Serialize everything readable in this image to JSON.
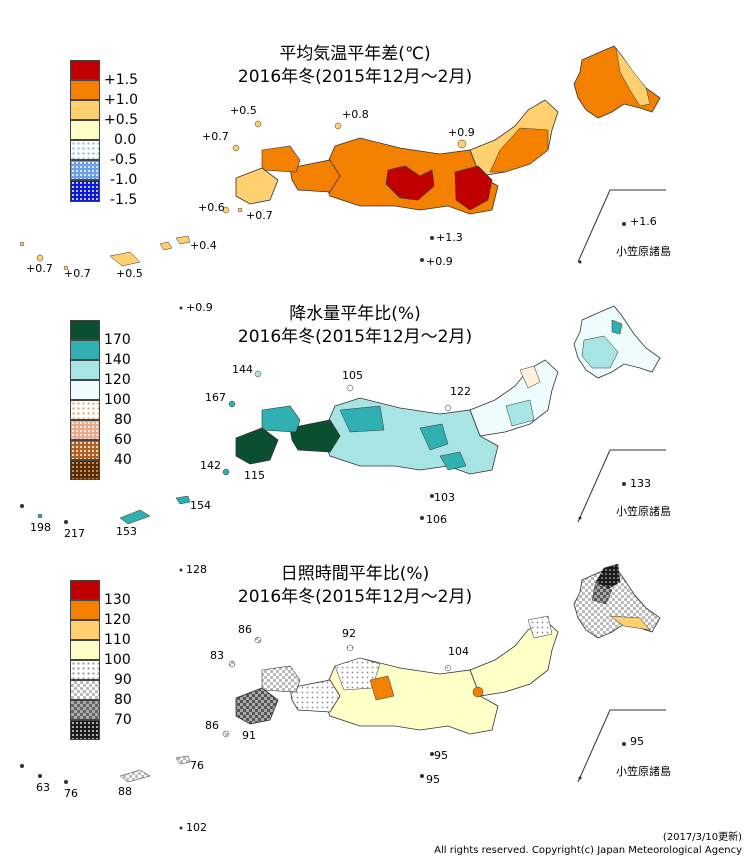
{
  "panels": [
    {
      "id": "temperature",
      "title": "平均気温平年差(℃)",
      "subtitle": "2016年冬(2015年12月～2月)",
      "legend": [
        {
          "label": "+1.5",
          "color": "#c00000",
          "pattern": "solid"
        },
        {
          "label": "+1.0",
          "color": "#f48000",
          "pattern": "solid"
        },
        {
          "label": "+0.5",
          "color": "#ffd070",
          "pattern": "solid"
        },
        {
          "label": "0.0",
          "color": "#ffffc8",
          "pattern": "solid"
        },
        {
          "label": "-0.5",
          "color": "#8bb4e8",
          "pattern": "dot-blue-light"
        },
        {
          "label": "-1.0",
          "color": "#6aa0ea",
          "pattern": "dot-blue-mid"
        },
        {
          "label": "-1.5",
          "color": "#0a18d8",
          "pattern": "dot-blue-dark"
        }
      ],
      "station_values": [
        "+0.5",
        "+0.8",
        "+0.7",
        "+0.9",
        "+0.6",
        "+0.7",
        "+1.3",
        "+0.9",
        "+0.4",
        "+0.7",
        "+0.7",
        "+0.5",
        "+1.6"
      ],
      "bonin_label": "小笠原諸島",
      "extra_value": "+0.9"
    },
    {
      "id": "precipitation",
      "title": "降水量平年比(%)",
      "subtitle": "2016年冬(2015年12月～2月)",
      "legend": [
        {
          "label": "170",
          "color": "#0a5030",
          "pattern": "solid"
        },
        {
          "label": "140",
          "color": "#30b0b0",
          "pattern": "solid"
        },
        {
          "label": "120",
          "color": "#a8e4e4",
          "pattern": "solid"
        },
        {
          "label": "100",
          "color": "#eefcfc",
          "pattern": "solid"
        },
        {
          "label": "80",
          "color": "#f0a060",
          "pattern": "dot-orange-light"
        },
        {
          "label": "60",
          "color": "#e8a98a",
          "pattern": "dot-brown-mid"
        },
        {
          "label": "40",
          "color": "#b06020",
          "pattern": "dot-brown-dark"
        },
        {
          "label": "",
          "color": "#5a2c00",
          "pattern": "dot-brown-deep"
        }
      ],
      "station_values": [
        "144",
        "105",
        "167",
        "122",
        "142",
        "115",
        "103",
        "106",
        "154",
        "198",
        "217",
        "153",
        "133"
      ],
      "bonin_label": "小笠原諸島",
      "extra_value": "128"
    },
    {
      "id": "sunshine",
      "title": "日照時間平年比(%)",
      "subtitle": "2016年冬(2015年12月～2月)",
      "legend": [
        {
          "label": "",
          "color": "#c00000",
          "pattern": "solid"
        },
        {
          "label": "130",
          "color": "#f48000",
          "pattern": "solid"
        },
        {
          "label": "120",
          "color": "#ffd070",
          "pattern": "solid"
        },
        {
          "label": "110",
          "color": "#ffffc8",
          "pattern": "solid"
        },
        {
          "label": "100",
          "color": "#ffffff",
          "pattern": "dot-gray-light"
        },
        {
          "label": "90",
          "color": "#bbbbbb",
          "pattern": "check-gray"
        },
        {
          "label": "80",
          "color": "#888888",
          "pattern": "check-dark"
        },
        {
          "label": "70",
          "color": "#1a1a1a",
          "pattern": "dot-black"
        }
      ],
      "station_values": [
        "86",
        "92",
        "83",
        "104",
        "86",
        "91",
        "95",
        "95",
        "76",
        "63",
        "76",
        "88",
        "95"
      ],
      "bonin_label": "小笠原諸島",
      "extra_value": "102"
    }
  ],
  "footer": {
    "updated": "(2017/3/10更新)",
    "copyright": "All rights reserved. Copyright(c) Japan Meteorological Agency"
  }
}
